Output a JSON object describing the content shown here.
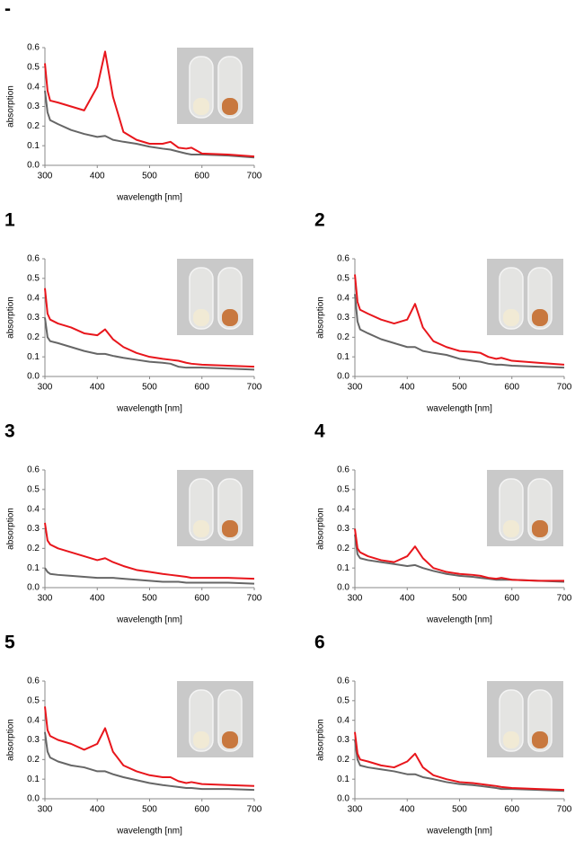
{
  "chart_data": [
    {
      "type": "line",
      "label": "-",
      "xlabel": "wavelength [nm]",
      "ylabel": "absorption",
      "x": [
        300,
        305,
        310,
        325,
        350,
        375,
        400,
        415,
        430,
        450,
        475,
        500,
        525,
        540,
        555,
        570,
        580,
        600,
        650,
        700
      ],
      "series": [
        {
          "color": "#e8161c",
          "values": [
            0.52,
            0.38,
            0.33,
            0.32,
            0.3,
            0.28,
            0.4,
            0.58,
            0.35,
            0.17,
            0.13,
            0.11,
            0.11,
            0.12,
            0.09,
            0.085,
            0.09,
            0.06,
            0.055,
            0.045
          ]
        },
        {
          "color": "#666666",
          "values": [
            0.38,
            0.27,
            0.23,
            0.21,
            0.18,
            0.16,
            0.145,
            0.15,
            0.13,
            0.12,
            0.11,
            0.095,
            0.085,
            0.08,
            0.07,
            0.06,
            0.055,
            0.055,
            0.05,
            0.04
          ]
        }
      ],
      "xlim": [
        300,
        700
      ],
      "ylim": [
        0,
        0.6
      ],
      "xticks": [
        300,
        400,
        500,
        600,
        700
      ],
      "yticks": [
        {
          "value": 0,
          "label": "0.0"
        },
        0.1,
        0.2,
        0.3,
        0.4,
        0.5,
        0.6
      ]
    },
    {
      "type": "line",
      "label": "1",
      "xlabel": "wavelength [nm]",
      "ylabel": "absorption",
      "x": [
        300,
        305,
        310,
        325,
        350,
        375,
        400,
        415,
        430,
        450,
        475,
        500,
        525,
        540,
        555,
        570,
        580,
        600,
        650,
        700
      ],
      "series": [
        {
          "color": "#e8161c",
          "values": [
            0.45,
            0.32,
            0.29,
            0.27,
            0.25,
            0.22,
            0.21,
            0.24,
            0.19,
            0.15,
            0.12,
            0.1,
            0.09,
            0.085,
            0.08,
            0.07,
            0.065,
            0.06,
            0.055,
            0.05
          ]
        },
        {
          "color": "#666666",
          "values": [
            0.3,
            0.2,
            0.18,
            0.17,
            0.15,
            0.13,
            0.115,
            0.115,
            0.105,
            0.095,
            0.085,
            0.075,
            0.07,
            0.065,
            0.05,
            0.045,
            0.045,
            0.045,
            0.04,
            0.035
          ]
        }
      ],
      "xlim": [
        300,
        700
      ],
      "ylim": [
        0,
        0.6
      ],
      "xticks": [
        300,
        400,
        500,
        600,
        700
      ],
      "yticks": [
        {
          "value": 0,
          "label": "0.0"
        },
        0.1,
        0.2,
        0.3,
        0.4,
        0.5,
        0.6
      ]
    },
    {
      "type": "line",
      "label": "2",
      "xlabel": "wavelength [nm]",
      "ylabel": "absorption",
      "x": [
        300,
        305,
        310,
        325,
        350,
        375,
        400,
        415,
        430,
        450,
        475,
        500,
        525,
        540,
        555,
        570,
        580,
        600,
        650,
        700
      ],
      "series": [
        {
          "color": "#e8161c",
          "values": [
            0.52,
            0.38,
            0.34,
            0.32,
            0.29,
            0.27,
            0.29,
            0.37,
            0.25,
            0.18,
            0.15,
            0.13,
            0.125,
            0.12,
            0.1,
            0.09,
            0.095,
            0.08,
            0.07,
            0.06
          ]
        },
        {
          "color": "#666666",
          "values": [
            0.42,
            0.28,
            0.24,
            0.22,
            0.19,
            0.17,
            0.15,
            0.15,
            0.13,
            0.12,
            0.11,
            0.09,
            0.08,
            0.075,
            0.065,
            0.06,
            0.06,
            0.055,
            0.05,
            0.045
          ]
        }
      ],
      "xlim": [
        300,
        700
      ],
      "ylim": [
        0,
        0.6
      ],
      "xticks": [
        300,
        400,
        500,
        600,
        700
      ],
      "yticks": [
        {
          "value": 0,
          "label": "0.0"
        },
        0.1,
        0.2,
        0.3,
        0.4,
        0.5,
        0.6
      ]
    },
    {
      "type": "line",
      "label": "3",
      "xlabel": "wavelength [nm]",
      "ylabel": "absorption",
      "x": [
        300,
        305,
        310,
        325,
        350,
        375,
        400,
        415,
        430,
        450,
        475,
        500,
        525,
        540,
        555,
        570,
        580,
        600,
        650,
        700
      ],
      "series": [
        {
          "color": "#e8161c",
          "values": [
            0.33,
            0.24,
            0.22,
            0.2,
            0.18,
            0.16,
            0.14,
            0.15,
            0.13,
            0.11,
            0.09,
            0.08,
            0.07,
            0.065,
            0.06,
            0.055,
            0.05,
            0.05,
            0.05,
            0.045
          ]
        },
        {
          "color": "#666666",
          "values": [
            0.1,
            0.08,
            0.07,
            0.065,
            0.06,
            0.055,
            0.05,
            0.05,
            0.05,
            0.045,
            0.04,
            0.035,
            0.03,
            0.03,
            0.03,
            0.025,
            0.025,
            0.025,
            0.025,
            0.02
          ]
        }
      ],
      "xlim": [
        300,
        700
      ],
      "ylim": [
        0,
        0.6
      ],
      "xticks": [
        300,
        400,
        500,
        600,
        700
      ],
      "yticks": [
        {
          "value": 0,
          "label": "0.0"
        },
        0.1,
        0.2,
        0.3,
        0.4,
        0.5,
        0.6
      ]
    },
    {
      "type": "line",
      "label": "4",
      "xlabel": "wavelength [nm]",
      "ylabel": "absorption",
      "x": [
        300,
        305,
        310,
        325,
        350,
        375,
        400,
        415,
        430,
        450,
        475,
        500,
        525,
        540,
        555,
        570,
        580,
        600,
        650,
        700
      ],
      "series": [
        {
          "color": "#e8161c",
          "values": [
            0.3,
            0.2,
            0.18,
            0.16,
            0.14,
            0.13,
            0.16,
            0.21,
            0.15,
            0.1,
            0.08,
            0.07,
            0.065,
            0.06,
            0.05,
            0.045,
            0.05,
            0.04,
            0.035,
            0.035
          ]
        },
        {
          "color": "#666666",
          "values": [
            0.27,
            0.17,
            0.15,
            0.14,
            0.13,
            0.12,
            0.11,
            0.115,
            0.1,
            0.085,
            0.07,
            0.06,
            0.055,
            0.05,
            0.045,
            0.04,
            0.04,
            0.04,
            0.035,
            0.03
          ]
        }
      ],
      "xlim": [
        300,
        700
      ],
      "ylim": [
        0,
        0.6
      ],
      "xticks": [
        300,
        400,
        500,
        600,
        700
      ],
      "yticks": [
        {
          "value": 0,
          "label": "0.0"
        },
        0.1,
        0.2,
        0.3,
        0.4,
        0.5,
        0.6
      ]
    },
    {
      "type": "line",
      "label": "5",
      "xlabel": "wavelength [nm]",
      "ylabel": "absorption",
      "x": [
        300,
        305,
        310,
        325,
        350,
        375,
        400,
        415,
        430,
        450,
        475,
        500,
        525,
        540,
        555,
        570,
        580,
        600,
        650,
        700
      ],
      "series": [
        {
          "color": "#e8161c",
          "values": [
            0.47,
            0.35,
            0.32,
            0.3,
            0.28,
            0.25,
            0.28,
            0.36,
            0.24,
            0.17,
            0.14,
            0.12,
            0.11,
            0.11,
            0.09,
            0.08,
            0.085,
            0.075,
            0.07,
            0.065
          ]
        },
        {
          "color": "#666666",
          "values": [
            0.34,
            0.24,
            0.21,
            0.19,
            0.17,
            0.16,
            0.14,
            0.14,
            0.125,
            0.11,
            0.095,
            0.08,
            0.07,
            0.065,
            0.06,
            0.055,
            0.055,
            0.05,
            0.05,
            0.045
          ]
        }
      ],
      "xlim": [
        300,
        700
      ],
      "ylim": [
        0,
        0.6
      ],
      "xticks": [
        300,
        400,
        500,
        600,
        700
      ],
      "yticks": [
        {
          "value": 0,
          "label": "0.0"
        },
        0.1,
        0.2,
        0.3,
        0.4,
        0.5,
        0.6
      ]
    },
    {
      "type": "line",
      "label": "6",
      "xlabel": "wavelength [nm]",
      "ylabel": "absorption",
      "x": [
        300,
        305,
        310,
        325,
        350,
        375,
        400,
        415,
        430,
        450,
        475,
        500,
        525,
        540,
        555,
        570,
        580,
        600,
        650,
        700
      ],
      "series": [
        {
          "color": "#e8161c",
          "values": [
            0.34,
            0.23,
            0.2,
            0.19,
            0.17,
            0.16,
            0.19,
            0.23,
            0.16,
            0.12,
            0.1,
            0.085,
            0.08,
            0.075,
            0.07,
            0.065,
            0.06,
            0.055,
            0.05,
            0.045
          ]
        },
        {
          "color": "#666666",
          "values": [
            0.3,
            0.2,
            0.17,
            0.16,
            0.15,
            0.14,
            0.125,
            0.125,
            0.11,
            0.1,
            0.085,
            0.075,
            0.07,
            0.065,
            0.06,
            0.055,
            0.05,
            0.05,
            0.045,
            0.04
          ]
        }
      ],
      "xlim": [
        300,
        700
      ],
      "ylim": [
        0,
        0.6
      ],
      "xticks": [
        300,
        400,
        500,
        600,
        700
      ],
      "yticks": [
        {
          "value": 0,
          "label": "0.0"
        },
        0.1,
        0.2,
        0.3,
        0.4,
        0.5,
        0.6
      ]
    }
  ]
}
